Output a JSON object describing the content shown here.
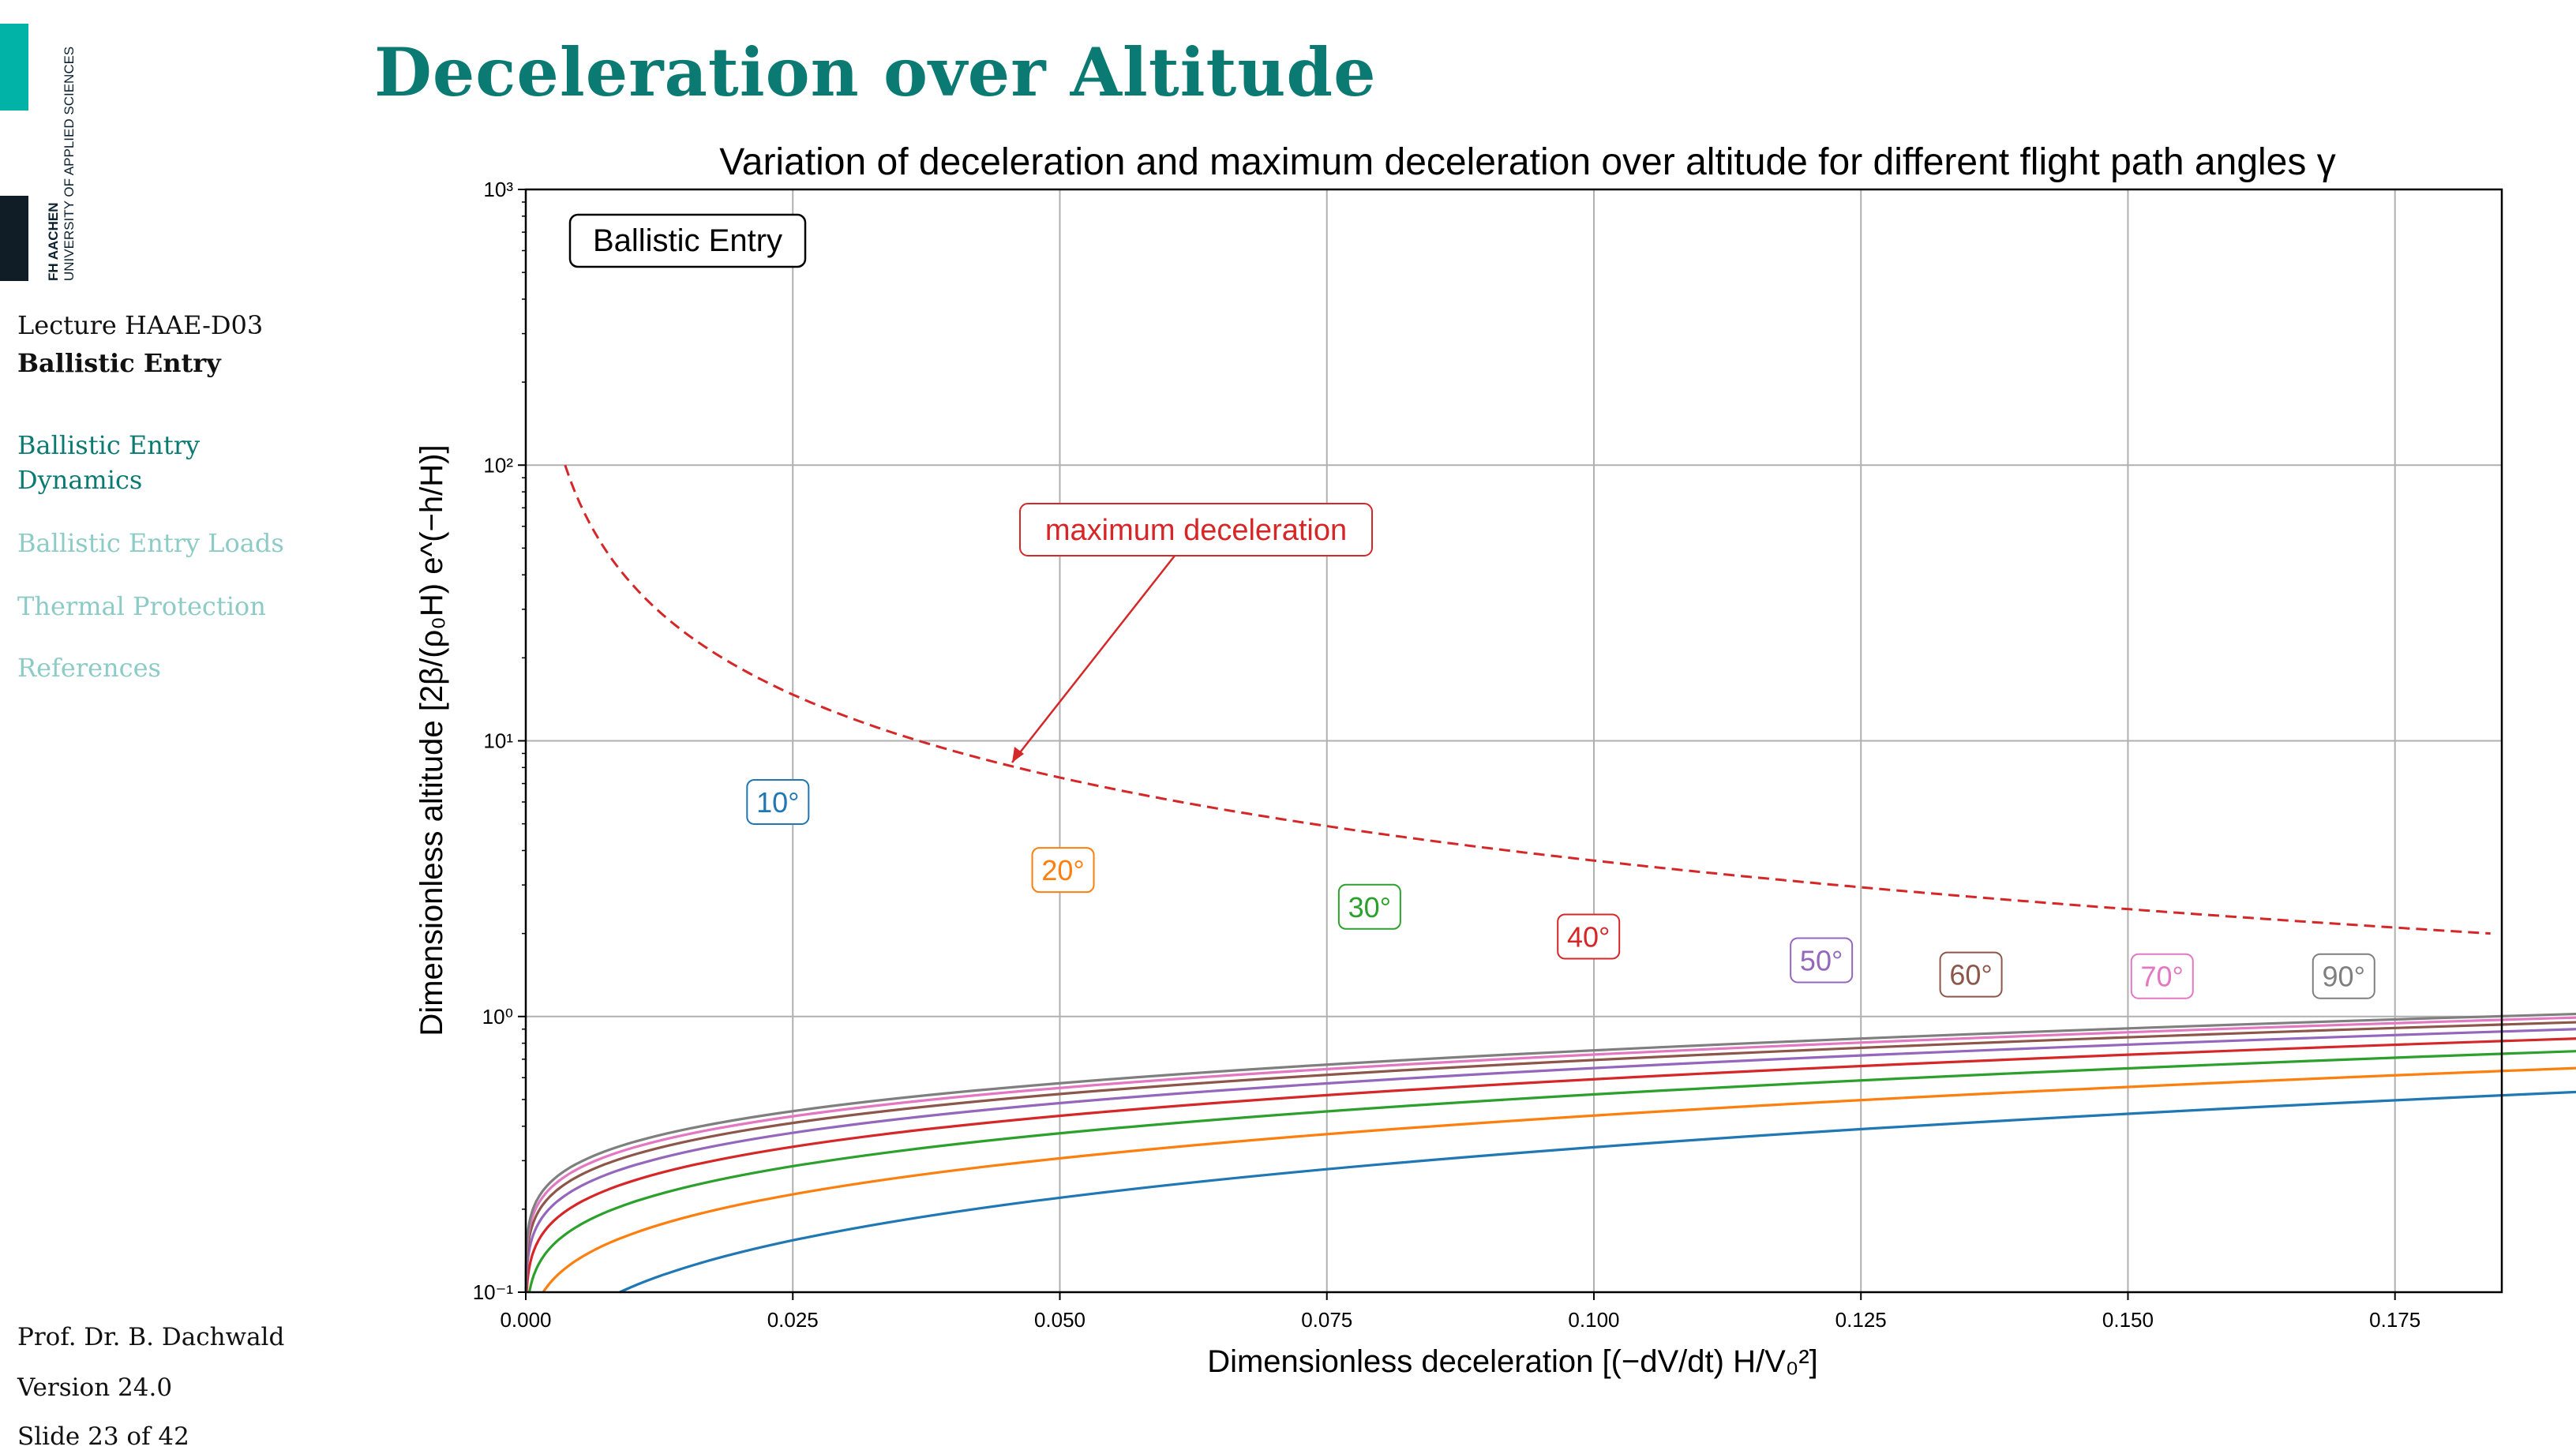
{
  "logo": {
    "line1": "FH AACHEN",
    "line2": "UNIVERSITY OF APPLIED SCIENCES"
  },
  "sidebar": {
    "lecture": "Lecture HAAE-D03",
    "topic": "Ballistic Entry",
    "nav": [
      "Ballistic Entry Dynamics",
      "Ballistic Entry Loads",
      "Thermal Protection",
      "References"
    ],
    "author": "Prof. Dr. B. Dachwald",
    "version": "Version 24.0",
    "slide": "Slide 23 of 42"
  },
  "slide_title": "Deceleration over Altitude",
  "chart_data": {
    "type": "line",
    "title": "Variation of deceleration and maximum deceleration over altitude for different flight path angles γ",
    "xlabel": "Dimensionless deceleration [(−dV/dt) H/V₀²]",
    "ylabel": "Dimensionless altitude [2β/(ρ₀H) e^(−h/H)]",
    "x_scale": "linear",
    "y_scale": "log",
    "xlim": [
      0,
      0.185
    ],
    "ylim": [
      0.1,
      1000
    ],
    "x_ticks": [
      "0.000",
      "0.025",
      "0.050",
      "0.075",
      "0.100",
      "0.125",
      "0.150",
      "0.175"
    ],
    "y_ticks": [
      "10⁻¹",
      "10⁰",
      "10¹",
      "10²",
      "10³"
    ],
    "grid": true,
    "box_label": "Ballistic Entry",
    "annotation": "maximum deceleration",
    "series": [
      {
        "name": "10°",
        "gamma_deg": 10,
        "color": "#1f77b4",
        "peak_x": 0.0322,
        "peak_y": 11.52
      },
      {
        "name": "20°",
        "gamma_deg": 20,
        "color": "#ff7f0e",
        "peak_x": 0.0629,
        "peak_y": 5.85
      },
      {
        "name": "30°",
        "gamma_deg": 30,
        "color": "#2ca02c",
        "peak_x": 0.092,
        "peak_y": 4.0
      },
      {
        "name": "40°",
        "gamma_deg": 40,
        "color": "#d62728",
        "peak_x": 0.1182,
        "peak_y": 3.11
      },
      {
        "name": "50°",
        "gamma_deg": 50,
        "color": "#9467bd",
        "peak_x": 0.1409,
        "peak_y": 2.61
      },
      {
        "name": "60°",
        "gamma_deg": 60,
        "color": "#8c564b",
        "peak_x": 0.1593,
        "peak_y": 2.31
      },
      {
        "name": "70°",
        "gamma_deg": 70,
        "color": "#e377c2",
        "peak_x": 0.1729,
        "peak_y": 2.13
      },
      {
        "name": "90°",
        "gamma_deg": 90,
        "color": "#7f7f7f",
        "peak_x": 0.1839,
        "peak_y": 2.0
      }
    ],
    "max_decel_series": {
      "color": "#d62728",
      "style": "dashed"
    }
  }
}
